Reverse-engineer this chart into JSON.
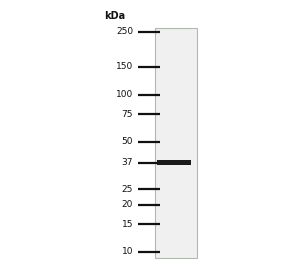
{
  "bg_color": "#ffffff",
  "gel_bg_color": "#f0f0f0",
  "gel_border_color": "#b0b8b0",
  "ladder_labels": [
    250,
    150,
    100,
    75,
    50,
    37,
    25,
    20,
    15,
    10
  ],
  "ladder_line_color": "#111111",
  "band_kda": 37,
  "band_color": "#1a1a1a",
  "kda_label": "kDa",
  "log_min": 1.0,
  "log_max": 2.39794,
  "figure_width": 2.88,
  "figure_height": 2.75,
  "dpi": 100
}
